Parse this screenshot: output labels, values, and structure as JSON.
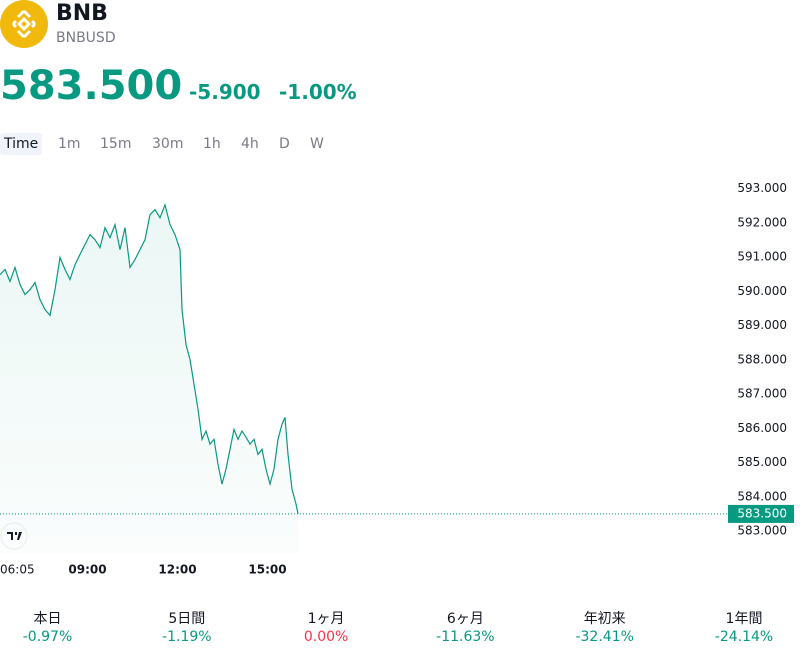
{
  "header": {
    "symbol": "BNB",
    "ticker": "BNBUSD",
    "price": "583.500",
    "change": "-5.900",
    "change_percent": "-1.00%"
  },
  "intervals": [
    "Time",
    "1m",
    "15m",
    "30m",
    "1h",
    "4h",
    "D",
    "W"
  ],
  "chart_data": {
    "type": "area",
    "color": "#089981",
    "series": [
      {
        "name": "BNBUSD",
        "color": "#089981",
        "x": [
          "06:05",
          "06:15",
          "06:25",
          "06:35",
          "06:45",
          "06:55",
          "07:05",
          "07:15",
          "07:25",
          "07:35",
          "07:45",
          "07:55",
          "08:05",
          "08:15",
          "08:25",
          "08:35",
          "08:45",
          "08:55",
          "09:05",
          "09:15",
          "09:25",
          "09:35",
          "09:45",
          "09:55",
          "10:05",
          "10:15",
          "10:25",
          "10:35",
          "10:45",
          "10:55",
          "11:05",
          "11:15",
          "11:25",
          "11:35",
          "11:45",
          "11:55",
          "12:05",
          "12:09",
          "12:17",
          "12:25",
          "12:33",
          "12:41",
          "12:49",
          "12:57",
          "13:05",
          "13:13",
          "13:21",
          "13:29",
          "13:37",
          "13:45",
          "13:53",
          "14:01",
          "14:09",
          "14:17",
          "14:25",
          "14:33",
          "14:41",
          "14:49",
          "14:57",
          "15:05",
          "15:13",
          "15:21",
          "15:29",
          "15:35",
          "15:41",
          "15:49",
          "15:57",
          "16:01"
        ],
        "values": [
          590.49,
          590.64,
          590.29,
          590.7,
          590.2,
          589.91,
          590.05,
          590.26,
          589.76,
          589.47,
          589.3,
          590.05,
          590.99,
          590.64,
          590.35,
          590.78,
          591.08,
          591.37,
          591.66,
          591.51,
          591.28,
          591.86,
          591.57,
          591.95,
          591.22,
          591.86,
          590.7,
          590.93,
          591.22,
          591.51,
          592.24,
          592.39,
          592.15,
          592.53,
          591.95,
          591.66,
          591.22,
          589.47,
          588.45,
          588.01,
          587.29,
          586.56,
          585.68,
          585.92,
          585.54,
          585.68,
          584.95,
          584.37,
          584.81,
          585.39,
          585.97,
          585.68,
          585.92,
          585.74,
          585.54,
          585.68,
          585.24,
          585.39,
          584.81,
          584.37,
          584.81,
          585.68,
          586.12,
          586.32,
          585.24,
          584.22,
          583.79,
          583.5
        ]
      }
    ],
    "xlim": [
      "06:05",
      "16:01"
    ],
    "xticks": [
      "06:05",
      "09:00",
      "12:00",
      "15:00"
    ],
    "ylim": [
      582.3,
      593.4
    ],
    "yticks": [
      {
        "value": 583,
        "label": "583.000"
      },
      {
        "value": 584,
        "label": "584.000"
      },
      {
        "value": 585,
        "label": "585.000"
      },
      {
        "value": 586,
        "label": "586.000"
      },
      {
        "value": 587,
        "label": "587.000"
      },
      {
        "value": 588,
        "label": "588.000"
      },
      {
        "value": 589,
        "label": "589.000"
      },
      {
        "value": 590,
        "label": "590.000"
      },
      {
        "value": 591,
        "label": "591.000"
      },
      {
        "value": 592,
        "label": "592.000"
      },
      {
        "value": 593,
        "label": "593.000"
      }
    ]
  },
  "performance": [
    {
      "label": "本日",
      "change": "-0.97%",
      "color": "#089981"
    },
    {
      "label": "5日間",
      "change": "-1.19%",
      "color": "#089981"
    },
    {
      "label": "1ヶ月",
      "change": "0.00%",
      "color": "#f23645"
    },
    {
      "label": "6ヶ月",
      "change": "-11.63%",
      "color": "#089981"
    },
    {
      "label": "年初来",
      "change": "-32.41%",
      "color": "#089981"
    },
    {
      "label": "1年間",
      "change": "-24.14%",
      "color": "#089981"
    }
  ]
}
